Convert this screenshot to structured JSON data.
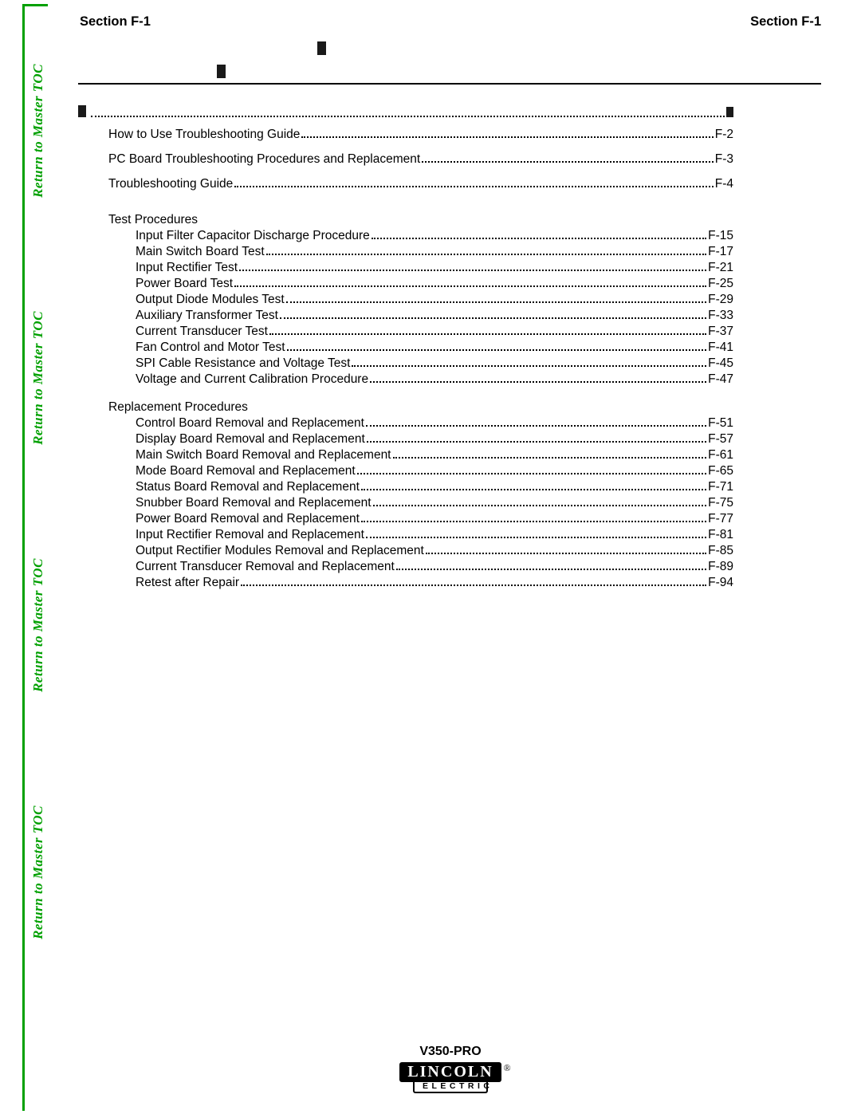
{
  "colors": {
    "accent_green": "#00a000",
    "text": "#000000",
    "background": "#ffffff"
  },
  "side_nav": {
    "label": "Return to Master TOC",
    "repeat": 4
  },
  "header": {
    "left": "Section F-1",
    "right": "Section F-1"
  },
  "toc": {
    "level1": [
      {
        "label": "How to Use Troubleshooting Guide",
        "page": "F-2"
      },
      {
        "label": "PC Board Troubleshooting Procedures and Replacement",
        "page": "F-3"
      },
      {
        "label": "Troubleshooting Guide",
        "page": "F-4"
      }
    ],
    "groups": [
      {
        "title": "Test Procedures",
        "items": [
          {
            "label": "Input Filter Capacitor Discharge Procedure",
            "page": "F-15"
          },
          {
            "label": "Main Switch Board Test",
            "page": "F-17"
          },
          {
            "label": "Input Rectifier Test",
            "page": "F-21"
          },
          {
            "label": "Power Board Test",
            "page": "F-25"
          },
          {
            "label": "Output Diode Modules Test",
            "page": "F-29"
          },
          {
            "label": "Auxiliary Transformer Test",
            "page": "F-33"
          },
          {
            "label": "Current Transducer Test",
            "page": "F-37"
          },
          {
            "label": "Fan Control and Motor Test",
            "page": "F-41"
          },
          {
            "label": "SPI Cable Resistance and Voltage Test",
            "page": "F-45"
          },
          {
            "label": "Voltage and Current Calibration Procedure",
            "page": "F-47"
          }
        ]
      },
      {
        "title": "Replacement Procedures",
        "items": [
          {
            "label": "Control Board Removal and Replacement",
            "page": "F-51"
          },
          {
            "label": "Display Board Removal and Replacement",
            "page": "F-57"
          },
          {
            "label": "Main Switch Board Removal and Replacement",
            "page": "F-61"
          },
          {
            "label": "Mode Board Removal and Replacement",
            "page": "F-65"
          },
          {
            "label": "Status Board Removal and Replacement",
            "page": "F-71"
          },
          {
            "label": "Snubber Board Removal and Replacement",
            "page": "F-75"
          },
          {
            "label": "Power Board Removal and Replacement",
            "page": "F-77"
          },
          {
            "label": "Input Rectifier Removal and Replacement",
            "page": "F-81"
          },
          {
            "label": "Output Rectifier Modules Removal and Replacement",
            "page": "F-85"
          },
          {
            "label": "Current Transducer Removal and Replacement",
            "page": "F-89"
          },
          {
            "label": "Retest after Repair",
            "page": "F-94"
          }
        ]
      }
    ]
  },
  "footer": {
    "model": "V350-PRO",
    "logo_top": "LINCOLN",
    "logo_reg": "®",
    "logo_bottom": "ELECTRIC"
  }
}
